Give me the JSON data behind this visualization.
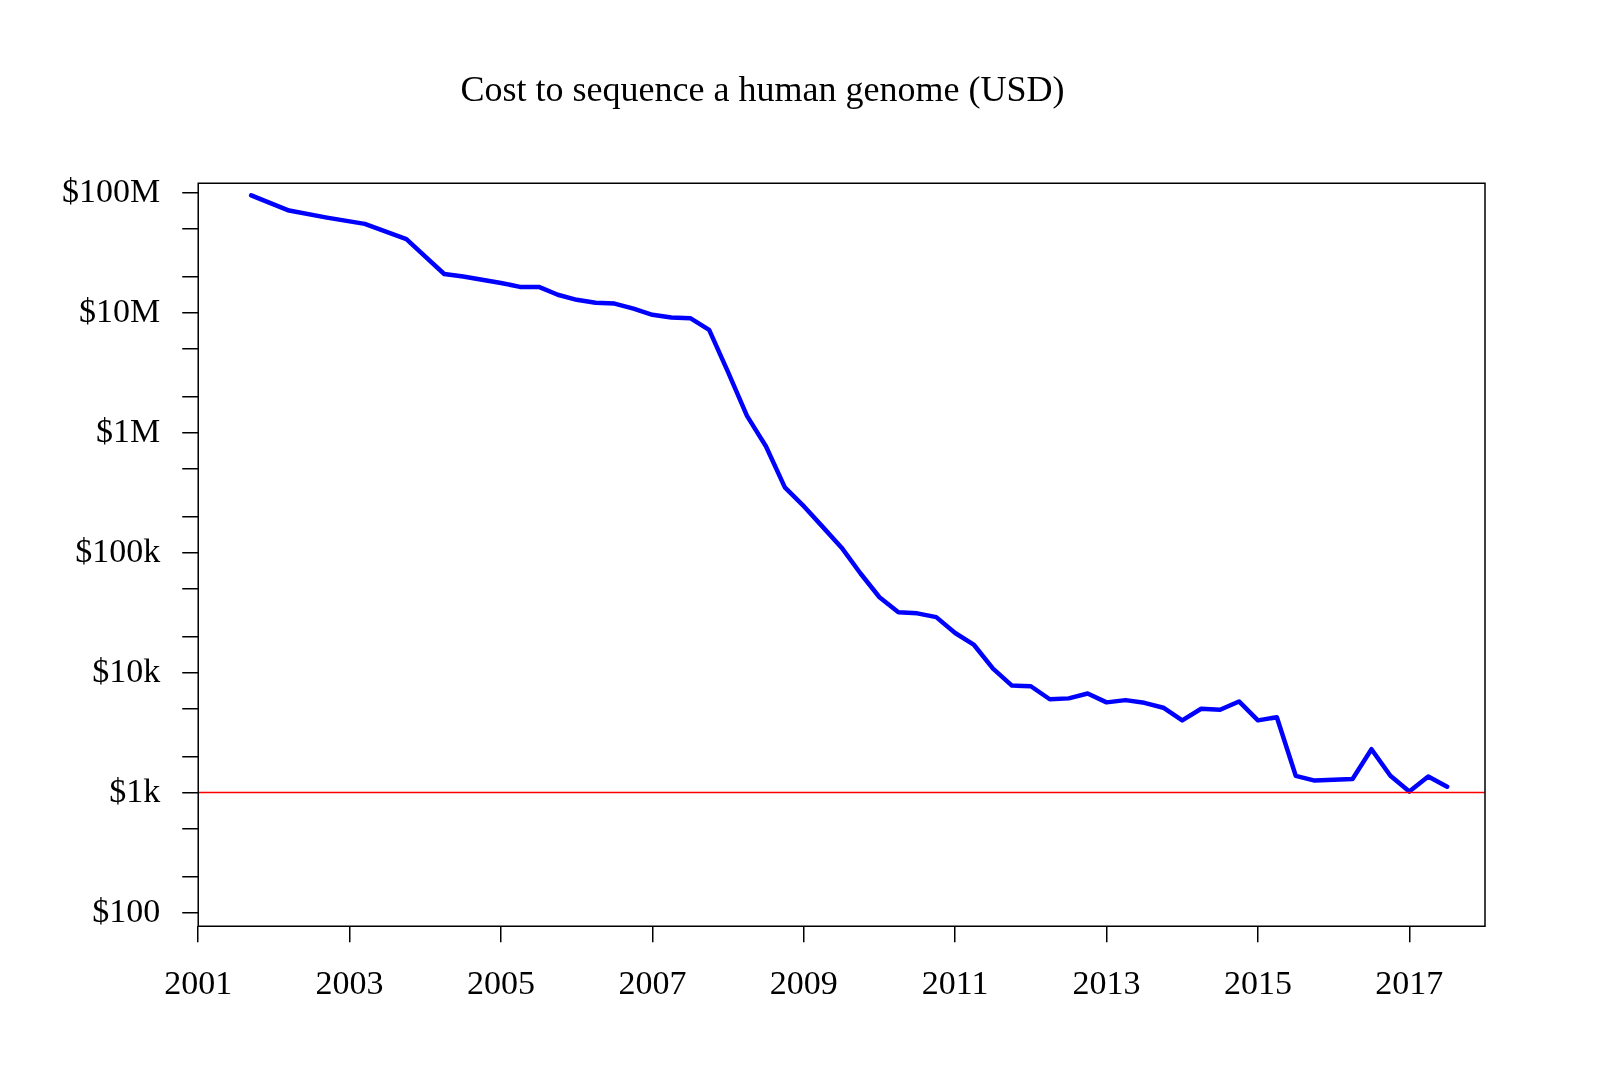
{
  "chart_data": {
    "type": "line",
    "title": "Cost to sequence a human genome (USD)",
    "x": [
      2001.7,
      2002.2,
      2002.7,
      2003.2,
      2003.75,
      2004.25,
      2004.5,
      2004.75,
      2005,
      2005.25,
      2005.5,
      2005.75,
      2006,
      2006.25,
      2006.5,
      2006.75,
      2007,
      2007.25,
      2007.5,
      2007.75,
      2008,
      2008.25,
      2008.5,
      2008.75,
      2009,
      2009.25,
      2009.5,
      2009.75,
      2010,
      2010.25,
      2010.5,
      2010.75,
      2011,
      2011.25,
      2011.5,
      2011.75,
      2012,
      2012.25,
      2012.5,
      2012.75,
      2013,
      2013.25,
      2013.5,
      2013.75,
      2014,
      2014.25,
      2014.5,
      2014.75,
      2015,
      2015.25,
      2015.5,
      2015.75,
      2016,
      2016.25,
      2016.5,
      2016.75,
      2017,
      2017.25,
      2017.5
    ],
    "series": [
      {
        "color": "#0000ff",
        "values": [
          95000000,
          71000000,
          62000000,
          55000000,
          41000000,
          21000000,
          20000000,
          18800000,
          17700000,
          16400000,
          16400000,
          14100000,
          12800000,
          12100000,
          11900000,
          10800000,
          9600000,
          9100000,
          9000000,
          7200000,
          3200000,
          1380000,
          770000,
          350000,
          244000,
          164000,
          110000,
          67000,
          42500,
          31900,
          31200,
          29000,
          21400,
          17000,
          10800,
          7800,
          7700,
          6000,
          6100,
          6700,
          5650,
          5900,
          5600,
          5100,
          4000,
          5000,
          4900,
          5750,
          4000,
          4250,
          1380,
          1260,
          1280,
          1300,
          2300,
          1380,
          1020,
          1360,
          1120
        ]
      }
    ],
    "log": "y",
    "xlim": [
      2001,
      2018
    ],
    "ylim": [
      77,
      120000000
    ],
    "xticks": [
      2001,
      2003,
      2005,
      2007,
      2009,
      2011,
      2013,
      2015,
      2017
    ],
    "yticks": [
      {
        "value": 100,
        "label": "$100"
      },
      {
        "value": 200,
        "label": null
      },
      {
        "value": 500,
        "label": null
      },
      {
        "value": 1000,
        "label": "$1k"
      },
      {
        "value": 2000,
        "label": null
      },
      {
        "value": 5000,
        "label": null
      },
      {
        "value": 10000,
        "label": "$10k"
      },
      {
        "value": 20000,
        "label": null
      },
      {
        "value": 50000,
        "label": null
      },
      {
        "value": 100000,
        "label": "$100k"
      },
      {
        "value": 200000,
        "label": null
      },
      {
        "value": 500000,
        "label": null
      },
      {
        "value": 1000000,
        "label": "$1M"
      },
      {
        "value": 2000000,
        "label": null
      },
      {
        "value": 5000000,
        "label": null
      },
      {
        "value": 10000000,
        "label": "$10M"
      },
      {
        "value": 20000000,
        "label": null
      },
      {
        "value": 50000000,
        "label": null
      },
      {
        "value": 100000000,
        "label": "$100M"
      }
    ],
    "ref_lines": [
      {
        "axis": "y",
        "value": 1000,
        "color": "#ff0000"
      }
    ],
    "grid": false,
    "legend": false,
    "line_style": "solid",
    "marker": "none"
  }
}
